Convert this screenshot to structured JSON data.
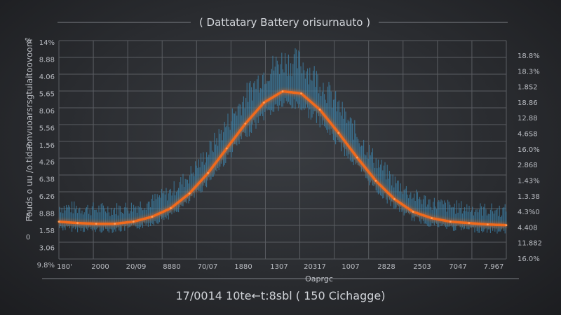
{
  "chart_data": {
    "type": "line",
    "title": "( Dattatary Battery orisurnauto )",
    "xlabel": "Oaprgc",
    "footer": "17/0014 10te←t:8sbl ( 150 Cichagge)",
    "ylabel": "Fouds o uu /o.tidaonvuoarsrsgtuiaitoovoom",
    "x_ticks": [
      "180'",
      "2000",
      "20/09",
      "8880",
      "70/07",
      "1880",
      "1307",
      "20317",
      "1007",
      "2828",
      "2503",
      "7047",
      "7.967"
    ],
    "y_ticks_left": [
      "14%",
      "8.88",
      "4.06",
      "5.65",
      "8.06",
      "5.56",
      "1.56",
      "4.26",
      "6.38",
      "6.26",
      "8.88",
      "1.58",
      "3.06",
      "9.8%"
    ],
    "y_ticks_right": [
      "18.8%",
      "18.3%",
      "1.8S2",
      "18.86",
      "12.88",
      "4.6S8",
      "16.0%",
      "2.868",
      "1.43%",
      "1.3.38",
      "4.3%0",
      "4.408",
      "11.882",
      "16.0%"
    ],
    "left_edge_marks": [
      "%",
      "o",
      "8",
      "0"
    ],
    "series": [
      {
        "x": [
          0,
          0.5,
          1,
          1.5,
          2,
          2.5,
          3,
          3.5,
          4,
          4.5,
          5,
          5.5,
          6,
          6.5,
          7,
          7.5,
          8,
          8.5,
          9,
          9.5,
          10,
          10.5,
          11,
          11.5,
          12
        ],
        "values": [
          5.3,
          5.1,
          5.0,
          5.0,
          5.3,
          6.0,
          7.2,
          9.3,
          12.2,
          15.7,
          19.2,
          22.2,
          23.8,
          23.5,
          21.2,
          17.9,
          14.4,
          11.1,
          8.5,
          6.7,
          5.8,
          5.3,
          5.1,
          4.9,
          4.8
        ],
        "color": "#f06a1e"
      }
    ],
    "ylim": [
      0,
      31
    ],
    "xlim": [
      0,
      12
    ],
    "grid": true,
    "colors": {
      "line": "#f06a1e",
      "noise": "#3e86ad",
      "grid": "#5a5d62"
    }
  }
}
